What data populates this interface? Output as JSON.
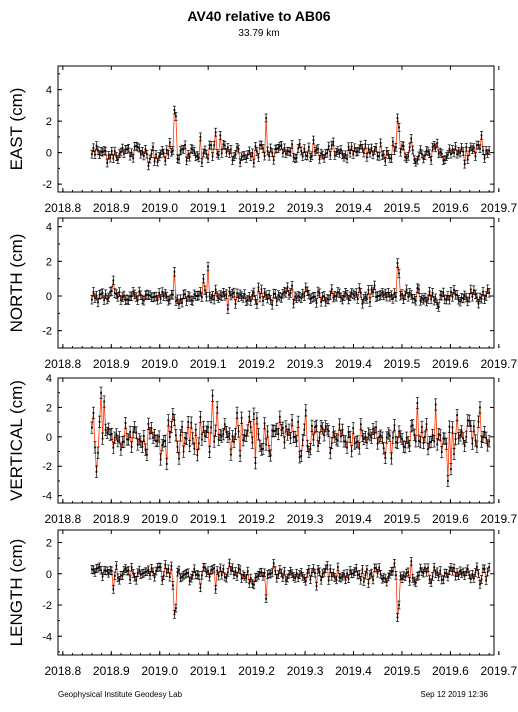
{
  "header": {
    "title": "AV40 relative to AB06",
    "subtitle": "33.79 km"
  },
  "footer": {
    "left": "Geophysical Institute Geodesy Lab",
    "right": "Sep 12 2019 12:36"
  },
  "colors": {
    "points": "#000000",
    "line": "#ff3300",
    "frame": "#000000"
  },
  "chart_data": [
    {
      "type": "line",
      "ylabel": "EAST (cm)",
      "xlim": [
        2018.79,
        2019.69
      ],
      "ylim": [
        -2.5,
        5.5
      ],
      "x_ticks": [
        "2018.8",
        "2018.9",
        "2019.0",
        "2019.1",
        "2019.2",
        "2019.3",
        "2019.4",
        "2019.5",
        "2019.6",
        "2019.7"
      ],
      "y_ticks": [
        -2,
        0,
        2,
        4
      ],
      "x_range": [
        2018.86,
        2019.68
      ],
      "base": 0.0,
      "noise": 0.32,
      "spikes": [
        {
          "x": 2019.03,
          "y": 2.7
        },
        {
          "x": 2019.035,
          "y": 2.3
        },
        {
          "x": 2019.085,
          "y": 1.0
        },
        {
          "x": 2019.115,
          "y": 1.3
        },
        {
          "x": 2019.125,
          "y": 1.1
        },
        {
          "x": 2019.22,
          "y": 2.2
        },
        {
          "x": 2019.49,
          "y": 2.2
        },
        {
          "x": 2019.495,
          "y": 1.6
        },
        {
          "x": 2019.52,
          "y": 0.9
        },
        {
          "x": 2019.665,
          "y": 1.1
        }
      ]
    },
    {
      "type": "line",
      "ylabel": "NORTH (cm)",
      "xlim": [
        2018.79,
        2019.69
      ],
      "ylim": [
        -3.0,
        4.5
      ],
      "x_ticks": [
        "2018.8",
        "2018.9",
        "2019.0",
        "2019.1",
        "2019.2",
        "2019.3",
        "2019.4",
        "2019.5",
        "2019.6",
        "2019.7"
      ],
      "y_ticks": [
        -2,
        0,
        2,
        4
      ],
      "x_range": [
        2018.86,
        2019.68
      ],
      "base": 0.0,
      "noise": 0.22,
      "spikes": [
        {
          "x": 2018.905,
          "y": 0.9
        },
        {
          "x": 2019.03,
          "y": 1.4
        },
        {
          "x": 2019.09,
          "y": 1.0
        },
        {
          "x": 2019.1,
          "y": 1.7
        },
        {
          "x": 2019.49,
          "y": 1.9
        },
        {
          "x": 2019.495,
          "y": 1.3
        }
      ]
    },
    {
      "type": "line",
      "ylabel": "VERTICAL (cm)",
      "xlim": [
        2018.79,
        2019.69
      ],
      "ylim": [
        -4.5,
        4.0
      ],
      "x_ticks": [
        "2018.8",
        "2018.9",
        "2019.0",
        "2019.1",
        "2019.2",
        "2019.3",
        "2019.4",
        "2019.5",
        "2019.6",
        "2019.7"
      ],
      "y_ticks": [
        -4,
        -2,
        0,
        2,
        4
      ],
      "x_range": [
        2018.86,
        2019.68
      ],
      "base": 0.0,
      "noise": 0.7,
      "spikes": [
        {
          "x": 2018.88,
          "y": 3.0
        },
        {
          "x": 2018.885,
          "y": 2.4
        },
        {
          "x": 2019.11,
          "y": 2.8
        },
        {
          "x": 2019.12,
          "y": 2.0
        },
        {
          "x": 2019.3,
          "y": 1.8
        },
        {
          "x": 2019.57,
          "y": 2.2
        },
        {
          "x": 2019.595,
          "y": -3.0
        },
        {
          "x": 2019.6,
          "y": -2.2
        },
        {
          "x": 2019.66,
          "y": 2.0
        }
      ]
    },
    {
      "type": "line",
      "ylabel": "LENGTH (cm)",
      "xlim": [
        2018.79,
        2019.69
      ],
      "ylim": [
        -5.2,
        2.8
      ],
      "x_ticks": [
        "2018.8",
        "2018.9",
        "2019.0",
        "2019.1",
        "2019.2",
        "2019.3",
        "2019.4",
        "2019.5",
        "2019.6",
        "2019.7"
      ],
      "y_ticks": [
        -4,
        -2,
        0,
        2
      ],
      "x_range": [
        2018.86,
        2019.68
      ],
      "base": 0.0,
      "noise": 0.28,
      "spikes": [
        {
          "x": 2018.905,
          "y": -1.0
        },
        {
          "x": 2019.03,
          "y": -2.6
        },
        {
          "x": 2019.035,
          "y": -2.2
        },
        {
          "x": 2019.085,
          "y": -0.9
        },
        {
          "x": 2019.115,
          "y": -1.0
        },
        {
          "x": 2019.22,
          "y": -1.6
        },
        {
          "x": 2019.49,
          "y": -2.8
        },
        {
          "x": 2019.495,
          "y": -2.0
        },
        {
          "x": 2019.52,
          "y": 0.8
        }
      ]
    }
  ]
}
